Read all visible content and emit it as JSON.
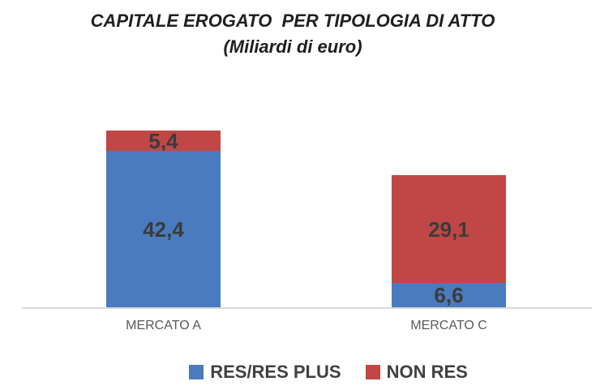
{
  "title": {
    "line1": "CAPITALE EROGATO  PER TIPOLOGIA DI ATTO",
    "line2": "(Miliardi di euro)"
  },
  "chart_data": {
    "type": "bar",
    "stacked": true,
    "title": "CAPITALE EROGATO  PER TIPOLOGIA DI ATTO",
    "subtitle": "(Miliardi di euro)",
    "categories": [
      "MERCATO A",
      "MERCATO C"
    ],
    "series": [
      {
        "name": "RES/RES PLUS",
        "color": "#4A7BBE",
        "values": [
          42.4,
          6.6
        ],
        "display_labels": [
          "42,4",
          "6,6"
        ]
      },
      {
        "name": "NON RES",
        "color": "#C04745",
        "values": [
          5.4,
          29.1
        ],
        "display_labels": [
          "5,4",
          "29,1"
        ]
      }
    ],
    "totals": [
      47.8,
      35.7
    ],
    "ylim": [
      0,
      50
    ],
    "grid": false,
    "y_axis_visible": false,
    "legend_position": "bottom",
    "value_unit": "Miliardi di euro"
  },
  "colors": {
    "axis_line": "#D9D9D9",
    "title_text": "#1F1F1F",
    "data_label": "#3B3B3B",
    "category_label": "#595959",
    "legend_text": "#404040"
  }
}
